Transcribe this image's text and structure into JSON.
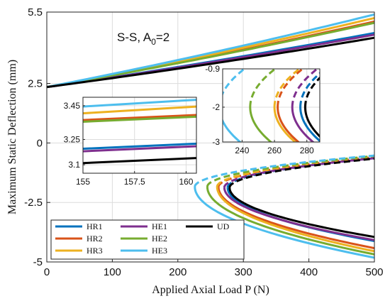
{
  "chart_data": {
    "type": "line",
    "xlabel": "Applied Axial Load P (N)",
    "ylabel": "Maximum Static Deflection (mm)",
    "annotation": "S-S, A0=2",
    "annotation_parts": {
      "main": "S-S, A",
      "sub": "0",
      "rest": "=2"
    },
    "xlim": [
      0,
      500
    ],
    "ylim": [
      -5,
      5.5
    ],
    "xticks": [
      0,
      100,
      200,
      300,
      400,
      500
    ],
    "yticks": [
      5.5,
      2.5,
      0,
      -2.5,
      -5
    ],
    "ytick_labels": [
      "5.5",
      "2.5",
      "0",
      "-2.5",
      "-5"
    ],
    "grid": true,
    "legend_position": "bottom-left",
    "series": [
      {
        "name": "HR1",
        "color": "#0072BD",
        "y0": 2.35,
        "upper_end": 4.62,
        "bif_P": 276,
        "bif_y": -1.87,
        "lower_end": -4.12,
        "dash_end": -0.64
      },
      {
        "name": "HR2",
        "color": "#D95319",
        "y0": 2.35,
        "upper_end": 5.1,
        "bif_P": 262,
        "bif_y": -1.85,
        "lower_end": -4.42,
        "dash_end": -0.6
      },
      {
        "name": "HR3",
        "color": "#EDB120",
        "y0": 2.35,
        "upper_end": 5.25,
        "bif_P": 260,
        "bif_y": -1.84,
        "lower_end": -4.55,
        "dash_end": -0.58
      },
      {
        "name": "HE1",
        "color": "#7E2F8E",
        "y0": 2.35,
        "upper_end": 4.55,
        "bif_P": 271,
        "bif_y": -1.87,
        "lower_end": -4.08,
        "dash_end": -0.64
      },
      {
        "name": "HE2",
        "color": "#77AC30",
        "y0": 2.35,
        "upper_end": 5.05,
        "bif_P": 245,
        "bif_y": -1.84,
        "lower_end": -4.68,
        "dash_end": -0.55
      },
      {
        "name": "HE3",
        "color": "#4DBEEE",
        "y0": 2.35,
        "upper_end": 5.4,
        "bif_P": 226,
        "bif_y": -1.84,
        "lower_end": -4.82,
        "dash_end": -0.53
      },
      {
        "name": "UD",
        "color": "#000000",
        "y0": 2.35,
        "upper_end": 4.42,
        "bif_P": 279,
        "bif_y": -1.88,
        "lower_end": -3.95,
        "dash_end": -0.66
      }
    ],
    "insets": [
      {
        "id": "inset-left",
        "xlim": [
          155,
          160.5
        ],
        "ylim": [
          3.05,
          3.5
        ],
        "xticks": [
          155,
          157.5,
          160
        ],
        "xtick_labels": [
          "155",
          "157.5",
          "160"
        ],
        "yticks": [
          3.45,
          3.25,
          3.1
        ],
        "ytick_labels": [
          "3.45",
          "3.25",
          "3.1"
        ],
        "lines": [
          {
            "name": "HE3",
            "color": "#4DBEEE",
            "y_start": 3.445,
            "y_end": 3.485
          },
          {
            "name": "HR3",
            "color": "#EDB120",
            "y_start": 3.405,
            "y_end": 3.445
          },
          {
            "name": "HR2",
            "color": "#D95319",
            "y_start": 3.365,
            "y_end": 3.395
          },
          {
            "name": "HE2",
            "color": "#77AC30",
            "y_start": 3.355,
            "y_end": 3.385
          },
          {
            "name": "HR1",
            "color": "#0072BD",
            "y_start": 3.195,
            "y_end": 3.225
          },
          {
            "name": "HE1",
            "color": "#7E2F8E",
            "y_start": 3.18,
            "y_end": 3.21
          },
          {
            "name": "UD",
            "color": "#000000",
            "y_start": 3.11,
            "y_end": 3.14
          }
        ]
      },
      {
        "id": "inset-right",
        "xlim": [
          228,
          288
        ],
        "ylim": [
          -3,
          -0.9
        ],
        "xticks": [
          240,
          260,
          280
        ],
        "xtick_labels": [
          "240",
          "260",
          "280"
        ],
        "yticks": [
          -0.9,
          -2,
          -3
        ],
        "ytick_labels": [
          "-0.9",
          "-2",
          "-3"
        ],
        "curves": [
          {
            "name": "HE3",
            "color": "#4DBEEE",
            "bif_P": 226
          },
          {
            "name": "HE2",
            "color": "#77AC30",
            "bif_P": 245
          },
          {
            "name": "HR3",
            "color": "#EDB120",
            "bif_P": 260
          },
          {
            "name": "HR2",
            "color": "#D95319",
            "bif_P": 262
          },
          {
            "name": "HE1",
            "color": "#7E2F8E",
            "bif_P": 271
          },
          {
            "name": "HR1",
            "color": "#0072BD",
            "bif_P": 276
          },
          {
            "name": "UD",
            "color": "#000000",
            "bif_P": 279
          }
        ]
      }
    ]
  }
}
